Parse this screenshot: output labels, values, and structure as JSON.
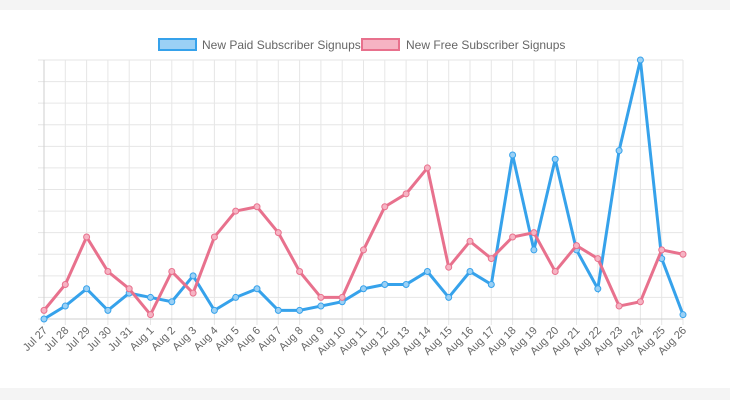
{
  "chart_data": {
    "type": "line",
    "title": "",
    "xlabel": "",
    "ylabel": "",
    "ylim": [
      0,
      30
    ],
    "grid": true,
    "legend_position": "top-center",
    "categories": [
      "Jul 27",
      "Jul 28",
      "Jul 29",
      "Jul 30",
      "Jul 31",
      "Aug 1",
      "Aug 2",
      "Aug 3",
      "Aug 4",
      "Aug 5",
      "Aug 6",
      "Aug 7",
      "Aug 8",
      "Aug 9",
      "Aug 10",
      "Aug 11",
      "Aug 12",
      "Aug 13",
      "Aug 14",
      "Aug 15",
      "Aug 16",
      "Aug 17",
      "Aug 18",
      "Aug 19",
      "Aug 20",
      "Aug 21",
      "Aug 22",
      "Aug 23",
      "Aug 24",
      "Aug 25",
      "Aug 26"
    ],
    "series": [
      {
        "name": "New Paid Subscriber Signups",
        "line_color": "#36a2eb",
        "fill_color": "#9ad0f5",
        "values": [
          0,
          1.5,
          3.5,
          1,
          3,
          2.5,
          2,
          5,
          1,
          2.5,
          3.5,
          1,
          1,
          1.5,
          2,
          3.5,
          4,
          4,
          5.5,
          2.5,
          5.5,
          4,
          19,
          8,
          18.5,
          8,
          3.5,
          19.5,
          30,
          7,
          0.5
        ]
      },
      {
        "name": "New Free Subscriber Signups",
        "line_color": "#e8718d",
        "fill_color": "#f6b3c3",
        "values": [
          1,
          4,
          9.5,
          5.5,
          3.5,
          0.5,
          5.5,
          3,
          9.5,
          12.5,
          13,
          10,
          5.5,
          2.5,
          2.5,
          8,
          13,
          14.5,
          17.5,
          6,
          9,
          7,
          9.5,
          10,
          5.5,
          8.5,
          7,
          1.5,
          2,
          8,
          7.5
        ]
      }
    ]
  }
}
